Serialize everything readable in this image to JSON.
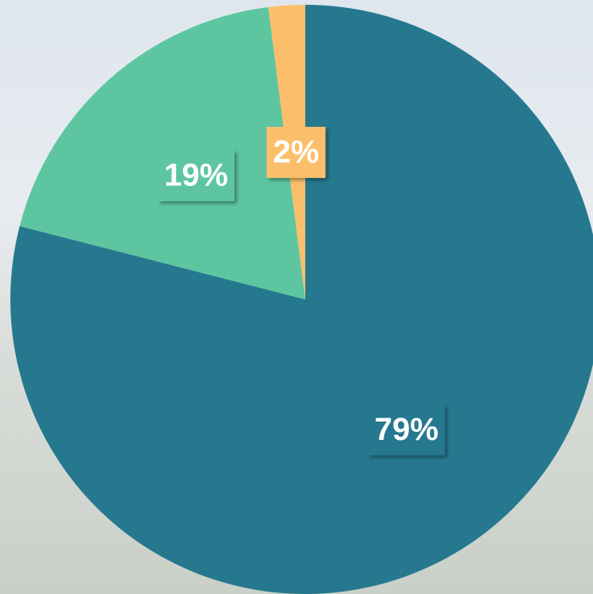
{
  "chart_data": {
    "type": "pie",
    "values": [
      79,
      19,
      2
    ],
    "value_labels": [
      "79%",
      "19%",
      "2%"
    ],
    "colors": [
      "#26788f",
      "#5dc6a1",
      "#fbbf6c"
    ]
  }
}
